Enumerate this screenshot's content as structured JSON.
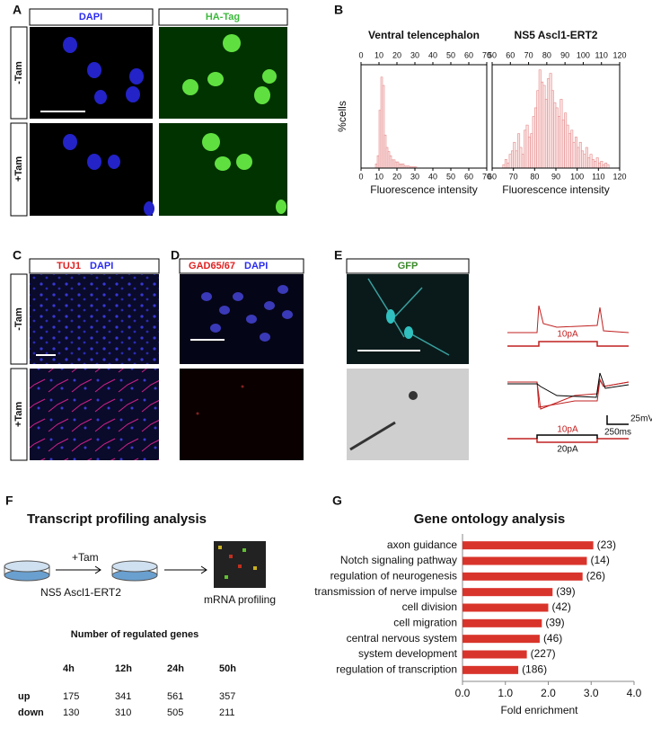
{
  "panels": {
    "A": {
      "letter": "A",
      "col1": "DAPI",
      "col2": "HA-Tag",
      "row1": "-Tam",
      "row2": "+Tam"
    },
    "B": {
      "letter": "B"
    },
    "C": {
      "letter": "C",
      "stain": "TUJ1",
      "counter": "DAPI",
      "row1": "-Tam",
      "row2": "+Tam"
    },
    "D": {
      "letter": "D",
      "stain": "GAD65/67",
      "counter": "DAPI"
    },
    "E": {
      "letter": "E",
      "stain": "GFP",
      "trace_labels": [
        "10pA",
        "10pA",
        "20pA"
      ],
      "scale_v": "25mV",
      "scale_t": "250ms"
    },
    "F": {
      "letter": "F",
      "title": "Transcript profiling analysis",
      "treatment": "+Tam",
      "cells": "NS5 Ascl1-ERT2",
      "readout": "mRNA profiling"
    },
    "G": {
      "letter": "G"
    }
  },
  "table": {
    "title": "Number of regulated genes",
    "header": [
      "4h",
      "12h",
      "24h",
      "50h"
    ],
    "rows": [
      [
        "up",
        175,
        341,
        561,
        357
      ],
      [
        "down",
        130,
        310,
        505,
        211
      ]
    ]
  },
  "chart_data": [
    {
      "type": "histogram",
      "title": "Ventral telencephalon",
      "xlabel": "Fluorescence intensity",
      "ylabel": "%cells",
      "bins": [
        8,
        9,
        10,
        11,
        12,
        13,
        14,
        15,
        16,
        17,
        18,
        19,
        20,
        21,
        22,
        23,
        24,
        25,
        26,
        27,
        28,
        29,
        30,
        31
      ],
      "values": [
        1,
        3,
        14,
        22,
        20,
        8,
        5,
        4,
        3,
        2,
        2,
        1.5,
        1.5,
        1,
        1,
        1,
        0.5,
        0.5,
        0.5,
        0.3,
        0.3,
        0.3,
        0.3
      ],
      "xlim": [
        0,
        70
      ],
      "xticks": [
        0,
        10,
        20,
        30,
        40,
        50,
        60,
        70
      ],
      "x2lim": [
        0,
        70
      ],
      "x2ticks": [
        0,
        10,
        20,
        30,
        40,
        50,
        60,
        70
      ],
      "ylim": [
        0,
        25
      ],
      "color": "#e58a8a"
    },
    {
      "type": "histogram",
      "title": "NS5 Ascl1-ERT2",
      "xlabel": "Fluorescence intensity",
      "bins": [
        65,
        66,
        67,
        68,
        69,
        70,
        71,
        72,
        73,
        74,
        75,
        76,
        77,
        78,
        79,
        80,
        81,
        82,
        83,
        84,
        85,
        86,
        87,
        88,
        89,
        90,
        91,
        92,
        93,
        94,
        95,
        96,
        97,
        98,
        99,
        100,
        101,
        102,
        103,
        104,
        105,
        106,
        107,
        108,
        109,
        110,
        111,
        112,
        113,
        114,
        115
      ],
      "values": [
        2,
        5,
        3,
        8,
        10,
        15,
        10,
        20,
        12,
        8,
        22,
        25,
        18,
        20,
        30,
        35,
        45,
        57,
        50,
        48,
        40,
        52,
        55,
        45,
        38,
        35,
        30,
        40,
        28,
        32,
        25,
        20,
        22,
        15,
        18,
        12,
        15,
        10,
        8,
        12,
        6,
        8,
        5,
        4,
        6,
        3,
        4,
        2,
        3,
        2
      ],
      "xlim": [
        60,
        120
      ],
      "xticks": [
        60,
        70,
        80,
        90,
        100,
        110,
        120
      ],
      "x2lim": [
        50,
        120
      ],
      "x2ticks": [
        50,
        60,
        70,
        80,
        90,
        100,
        110,
        120
      ],
      "ylim": [
        0,
        60
      ],
      "color": "#e58a8a"
    },
    {
      "type": "hbar",
      "title": "Gene ontology analysis",
      "xlabel": "Fold enrichment",
      "categories": [
        "axon guidance",
        "Notch signaling pathway",
        "regulation of neurogenesis",
        "transmission of nerve impulse",
        "cell division",
        "cell migration",
        "central nervous system",
        "system development",
        "regulation of transcription"
      ],
      "values": [
        3.05,
        2.9,
        2.8,
        2.1,
        2.0,
        1.85,
        1.8,
        1.5,
        1.3
      ],
      "gene_counts": [
        "(23)",
        "(14)",
        "(26)",
        "(39)",
        "(42)",
        "(39)",
        "(46)",
        "(227)",
        "(186)"
      ],
      "xlim": [
        0,
        4
      ],
      "xticks": [
        {
          "value": 0,
          "label": "0.0"
        },
        {
          "value": 1,
          "label": "1.0"
        },
        {
          "value": 2,
          "label": "2.0"
        },
        {
          "value": 3,
          "label": "3.0"
        },
        {
          "value": 4,
          "label": "4.0"
        }
      ],
      "color": "#d9342b"
    }
  ]
}
